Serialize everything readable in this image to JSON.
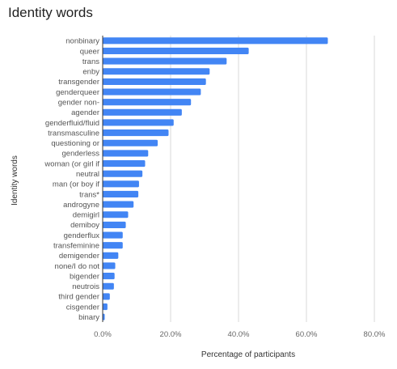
{
  "chart_data": {
    "type": "bar",
    "orientation": "horizontal",
    "title": "Identity words",
    "xlabel": "Percentage of participants",
    "ylabel": "Identity words",
    "xlim": [
      0,
      80
    ],
    "x_ticks": [
      "0.0%",
      "20.0%",
      "40.0%",
      "60.0%",
      "80.0%"
    ],
    "x_tick_values": [
      0,
      20,
      40,
      60,
      80
    ],
    "grid": "vertical",
    "legend": "none",
    "bar_color": "#4285f4",
    "categories": [
      "nonbinary",
      "queer",
      "trans",
      "enby",
      "transgender",
      "genderqueer",
      "gender non-",
      "agender",
      "genderfluid/fluid",
      "transmasculine",
      "questioning or",
      "genderless",
      "woman (or girl if",
      "neutral",
      "man (or boy if",
      "trans*",
      "androgyne",
      "demigirl",
      "demiboy",
      "genderflux",
      "transfeminine",
      "demigender",
      "none/I do not",
      "bigender",
      "neutrois",
      "third gender",
      "cisgender",
      "binary"
    ],
    "values": [
      66.3,
      43.0,
      36.5,
      31.5,
      30.4,
      28.9,
      26.0,
      23.3,
      20.9,
      19.4,
      16.2,
      13.4,
      12.5,
      11.7,
      10.7,
      10.5,
      9.1,
      7.5,
      6.8,
      5.9,
      5.9,
      4.6,
      3.7,
      3.5,
      3.3,
      2.1,
      1.4,
      0.6
    ]
  }
}
